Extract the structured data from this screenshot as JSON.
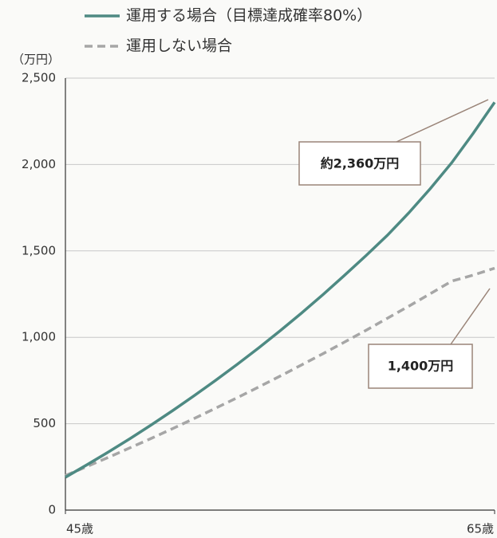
{
  "chart_data": {
    "type": "line",
    "y_axis_label": "（万円）",
    "x": [
      45,
      46,
      47,
      48,
      49,
      50,
      51,
      52,
      53,
      54,
      55,
      56,
      57,
      58,
      59,
      60,
      61,
      62,
      63,
      64,
      65
    ],
    "series": [
      {
        "name": "運用する場合（目標達成確率80%）",
        "color": "#4e8a83",
        "dash": false,
        "values": [
          190,
          262,
          336,
          413,
          493,
          576,
          662,
          751,
          843,
          938,
          1037,
          1140,
          1247,
          1358,
          1472,
          1590,
          1720,
          1860,
          2010,
          2180,
          2360
        ]
      },
      {
        "name": "運用しない場合",
        "color": "#a6a6a6",
        "dash": true,
        "values": [
          200,
          252,
          305,
          360,
          415,
          472,
          530,
          590,
          650,
          712,
          775,
          840,
          905,
          972,
          1040,
          1110,
          1180,
          1252,
          1325,
          1360,
          1400
        ]
      }
    ],
    "xlim": [
      45,
      65
    ],
    "xticks": [
      {
        "value": 45,
        "label": "45歳"
      },
      {
        "value": 65,
        "label": "65歳"
      }
    ],
    "ylim": [
      0,
      2500
    ],
    "yticks": [
      0,
      500,
      {
        "value": 1000,
        "label": "1,000"
      },
      {
        "value": 1500,
        "label": "1,500"
      },
      {
        "value": 2000,
        "label": "2,000"
      },
      {
        "value": 2500,
        "label": "2,500"
      }
    ],
    "grid": true,
    "annotations": [
      {
        "text": "約2,360万円"
      },
      {
        "text": "1,400万円"
      }
    ]
  }
}
